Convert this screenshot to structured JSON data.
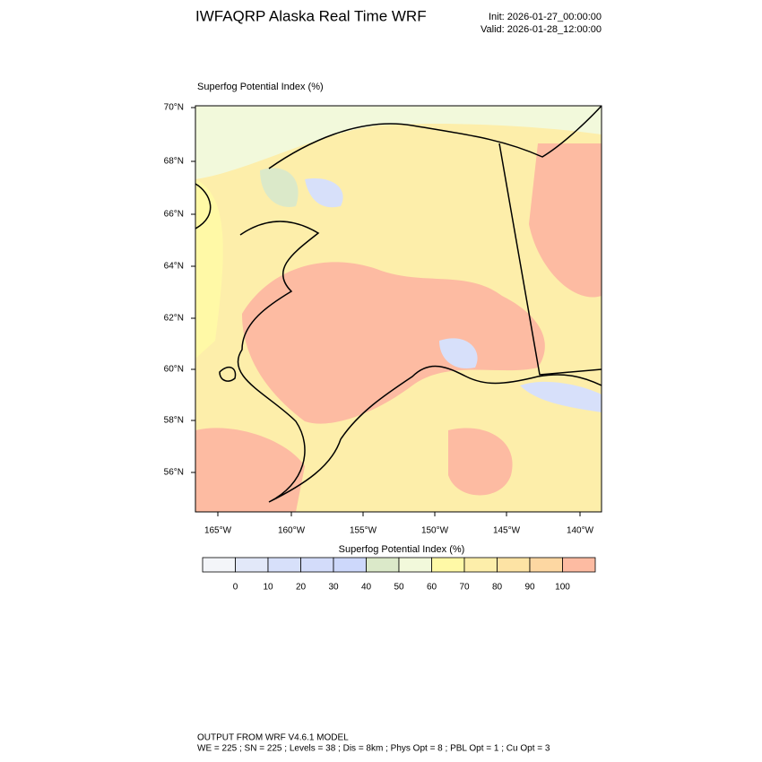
{
  "header": {
    "title": "IWFAQRP Alaska Real Time WRF",
    "init": "Init: 2026-01-27_00:00:00",
    "valid": "Valid: 2026-01-28_12:00:00"
  },
  "map": {
    "label": "Superfog Potential Index   (%)",
    "lat_labels": [
      "70°N",
      "68°N",
      "66°N",
      "64°N",
      "62°N",
      "60°N",
      "58°N",
      "56°N"
    ],
    "lon_labels": [
      "165°W",
      "160°W",
      "155°W",
      "150°W",
      "145°W",
      "140°W"
    ]
  },
  "colorbar": {
    "title": "Superfog Potential Index  (%)",
    "labels": [
      "0",
      "10",
      "20",
      "30",
      "40",
      "50",
      "60",
      "70",
      "80",
      "90",
      "100"
    ],
    "colors": [
      "#f3f5f9",
      "#e2e8f9",
      "#d7e0fa",
      "#d3dcfa",
      "#cdd8fb",
      "#dbe9c9",
      "#f2f9db",
      "#fff9a6",
      "#fdeeaa",
      "#fde3a4",
      "#fdd7a2",
      "#fdbba2"
    ]
  },
  "footer": {
    "line1": "OUTPUT FROM WRF V4.6.1 MODEL",
    "line2": "WE = 225 ; SN = 225 ; Levels = 38 ; Dis = 8km ; Phys Opt = 8 ; PBL Opt = 1 ; Cu Opt = 3"
  }
}
